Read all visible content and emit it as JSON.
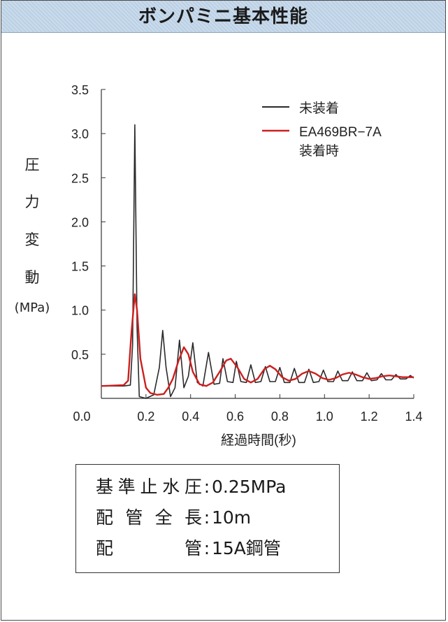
{
  "header": {
    "title": "ボンパミニ基本性能"
  },
  "chart_data": {
    "type": "line",
    "xlabel": "経過時間(秒)",
    "ylabel_chars": [
      "圧",
      "力",
      "変",
      "動"
    ],
    "ylabel_unit": "(MPa)",
    "xlim": [
      0,
      1.4
    ],
    "ylim": [
      0,
      3.5
    ],
    "xticks": [
      0.2,
      0.4,
      0.6,
      0.8,
      1.0,
      1.2,
      1.4
    ],
    "xtick_labels": [
      "0.2",
      "0.4",
      "0.6",
      "0.8",
      "1.0",
      "1.2",
      "1.4"
    ],
    "yticks": [
      0.0,
      0.5,
      1.0,
      1.5,
      2.0,
      2.5,
      3.0,
      3.5
    ],
    "ytick_labels": [
      "0.0",
      "0.5",
      "1.0",
      "1.5",
      "2.0",
      "2.5",
      "3.0",
      "3.5"
    ],
    "grid": false,
    "legend_position": "top-right",
    "series": [
      {
        "name": "未装着",
        "color": "#2a2a2a",
        "points": [
          [
            0.0,
            0.14
          ],
          [
            0.1,
            0.14
          ],
          [
            0.13,
            0.15
          ],
          [
            0.14,
            0.6
          ],
          [
            0.15,
            3.1
          ],
          [
            0.16,
            0.8
          ],
          [
            0.17,
            0.02
          ],
          [
            0.2,
            0.0
          ],
          [
            0.235,
            0.04
          ],
          [
            0.26,
            0.35
          ],
          [
            0.275,
            0.77
          ],
          [
            0.29,
            0.35
          ],
          [
            0.31,
            0.02
          ],
          [
            0.33,
            0.12
          ],
          [
            0.35,
            0.66
          ],
          [
            0.37,
            0.12
          ],
          [
            0.39,
            0.25
          ],
          [
            0.41,
            0.63
          ],
          [
            0.43,
            0.18
          ],
          [
            0.455,
            0.14
          ],
          [
            0.48,
            0.52
          ],
          [
            0.505,
            0.16
          ],
          [
            0.53,
            0.17
          ],
          [
            0.545,
            0.45
          ],
          [
            0.565,
            0.19
          ],
          [
            0.59,
            0.18
          ],
          [
            0.605,
            0.42
          ],
          [
            0.625,
            0.19
          ],
          [
            0.65,
            0.18
          ],
          [
            0.67,
            0.38
          ],
          [
            0.69,
            0.18
          ],
          [
            0.715,
            0.19
          ],
          [
            0.735,
            0.36
          ],
          [
            0.755,
            0.19
          ],
          [
            0.78,
            0.19
          ],
          [
            0.8,
            0.35
          ],
          [
            0.82,
            0.18
          ],
          [
            0.845,
            0.18
          ],
          [
            0.865,
            0.34
          ],
          [
            0.885,
            0.18
          ],
          [
            0.91,
            0.18
          ],
          [
            0.93,
            0.33
          ],
          [
            0.95,
            0.18
          ],
          [
            0.975,
            0.19
          ],
          [
            0.995,
            0.32
          ],
          [
            1.015,
            0.19
          ],
          [
            1.04,
            0.19
          ],
          [
            1.06,
            0.31
          ],
          [
            1.08,
            0.2
          ],
          [
            1.105,
            0.2
          ],
          [
            1.125,
            0.3
          ],
          [
            1.145,
            0.2
          ],
          [
            1.17,
            0.2
          ],
          [
            1.19,
            0.29
          ],
          [
            1.21,
            0.2
          ],
          [
            1.235,
            0.21
          ],
          [
            1.255,
            0.28
          ],
          [
            1.275,
            0.21
          ],
          [
            1.3,
            0.21
          ],
          [
            1.32,
            0.27
          ],
          [
            1.34,
            0.22
          ],
          [
            1.365,
            0.22
          ],
          [
            1.385,
            0.26
          ],
          [
            1.4,
            0.23
          ]
        ]
      },
      {
        "name": "EA469BR-7A 装着時",
        "color": "#cc1f1f",
        "points": [
          [
            0.0,
            0.14
          ],
          [
            0.1,
            0.15
          ],
          [
            0.12,
            0.2
          ],
          [
            0.135,
            0.75
          ],
          [
            0.15,
            1.18
          ],
          [
            0.16,
            1.0
          ],
          [
            0.175,
            0.45
          ],
          [
            0.2,
            0.12
          ],
          [
            0.22,
            0.06
          ],
          [
            0.25,
            0.04
          ],
          [
            0.28,
            0.05
          ],
          [
            0.3,
            0.12
          ],
          [
            0.32,
            0.22
          ],
          [
            0.345,
            0.42
          ],
          [
            0.37,
            0.58
          ],
          [
            0.39,
            0.5
          ],
          [
            0.41,
            0.3
          ],
          [
            0.44,
            0.16
          ],
          [
            0.47,
            0.14
          ],
          [
            0.5,
            0.18
          ],
          [
            0.53,
            0.3
          ],
          [
            0.56,
            0.43
          ],
          [
            0.58,
            0.45
          ],
          [
            0.61,
            0.35
          ],
          [
            0.64,
            0.22
          ],
          [
            0.67,
            0.18
          ],
          [
            0.7,
            0.22
          ],
          [
            0.73,
            0.33
          ],
          [
            0.755,
            0.37
          ],
          [
            0.78,
            0.33
          ],
          [
            0.81,
            0.24
          ],
          [
            0.84,
            0.2
          ],
          [
            0.87,
            0.22
          ],
          [
            0.9,
            0.28
          ],
          [
            0.93,
            0.31
          ],
          [
            0.96,
            0.28
          ],
          [
            0.99,
            0.23
          ],
          [
            1.02,
            0.21
          ],
          [
            1.05,
            0.23
          ],
          [
            1.08,
            0.27
          ],
          [
            1.11,
            0.29
          ],
          [
            1.14,
            0.27
          ],
          [
            1.17,
            0.24
          ],
          [
            1.2,
            0.22
          ],
          [
            1.23,
            0.23
          ],
          [
            1.26,
            0.25
          ],
          [
            1.29,
            0.26
          ],
          [
            1.32,
            0.25
          ],
          [
            1.35,
            0.24
          ],
          [
            1.38,
            0.24
          ],
          [
            1.4,
            0.24
          ]
        ]
      }
    ]
  },
  "legend": {
    "items": [
      {
        "line1": "未装着",
        "line2": "",
        "color": "#2a2a2a"
      },
      {
        "line1": "EA469BR−7A",
        "line2": "装着時",
        "color": "#cc1f1f"
      }
    ]
  },
  "specs": {
    "rows": [
      {
        "label": "基準止水圧",
        "value": "0.25MPa"
      },
      {
        "label": "配管全長",
        "value": "10m"
      },
      {
        "label": "配管",
        "value": "15A鋼管"
      }
    ]
  }
}
